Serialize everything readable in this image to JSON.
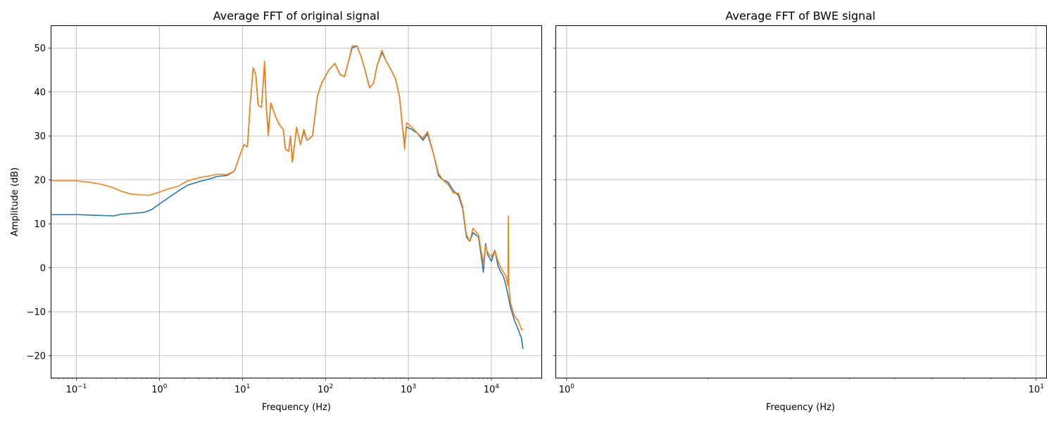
{
  "chart_data": [
    {
      "type": "line",
      "title": "Average FFT of original signal",
      "xlabel": "Frequency (Hz)",
      "ylabel": "Amplitude (dB)",
      "xscale": "log",
      "xlim": [
        0.05,
        40000
      ],
      "ylim": [
        -25,
        55
      ],
      "grid": true,
      "xticks": [
        {
          "value": 0.1,
          "base": "10",
          "exp": "−1"
        },
        {
          "value": 1,
          "base": "10",
          "exp": "0"
        },
        {
          "value": 10,
          "base": "10",
          "exp": "1"
        },
        {
          "value": 100,
          "base": "10",
          "exp": "2"
        },
        {
          "value": 1000,
          "base": "10",
          "exp": "3"
        },
        {
          "value": 10000,
          "base": "10",
          "exp": "4"
        }
      ],
      "yticks": [
        {
          "value": 50,
          "label": "50"
        },
        {
          "value": 40,
          "label": "40"
        },
        {
          "value": 30,
          "label": "30"
        },
        {
          "value": 20,
          "label": "20"
        },
        {
          "value": 10,
          "label": "10"
        },
        {
          "value": 0,
          "label": "0"
        },
        {
          "value": -10,
          "label": "−10"
        },
        {
          "value": -20,
          "label": "−20"
        }
      ],
      "series": [
        {
          "color": "#1f77b4",
          "points": [
            [
              0.05,
              12.1
            ],
            [
              0.1,
              12.1
            ],
            [
              0.2,
              11.9
            ],
            [
              0.28,
              11.8
            ],
            [
              0.35,
              12.2
            ],
            [
              0.5,
              12.4
            ],
            [
              0.65,
              12.6
            ],
            [
              0.8,
              13.2
            ],
            [
              1.0,
              14.5
            ],
            [
              1.3,
              16.0
            ],
            [
              1.7,
              17.5
            ],
            [
              2.2,
              18.8
            ],
            [
              3.0,
              19.6
            ],
            [
              4.0,
              20.2
            ],
            [
              5.0,
              20.8
            ],
            [
              6.5,
              21.0
            ],
            [
              8.0,
              22.0
            ],
            [
              9.5,
              26.0
            ],
            [
              10.5,
              28.0
            ],
            [
              11.5,
              27.5
            ],
            [
              12.5,
              38.0
            ],
            [
              13.5,
              45.5
            ],
            [
              14.5,
              44.0
            ],
            [
              15.5,
              37.0
            ],
            [
              17.0,
              36.5
            ],
            [
              18.5,
              46.5
            ],
            [
              19.5,
              36.0
            ],
            [
              20.5,
              31.0
            ],
            [
              22.0,
              37.5
            ],
            [
              25.0,
              34.5
            ],
            [
              28.0,
              32.5
            ],
            [
              31.0,
              31.5
            ],
            [
              33.0,
              27.0
            ],
            [
              36.0,
              26.5
            ],
            [
              38.0,
              30.0
            ],
            [
              40.0,
              24.0
            ],
            [
              45.0,
              32.0
            ],
            [
              50.0,
              28.0
            ],
            [
              55.0,
              31.0
            ],
            [
              60.0,
              29.0
            ],
            [
              70.0,
              30.0
            ],
            [
              80.0,
              39.0
            ],
            [
              90.0,
              42.0
            ],
            [
              110.0,
              45.0
            ],
            [
              130.0,
              46.5
            ],
            [
              150.0,
              44.0
            ],
            [
              170.0,
              43.5
            ],
            [
              190.0,
              47.0
            ],
            [
              210.0,
              50.0
            ],
            [
              240.0,
              50.5
            ],
            [
              270.0,
              48.0
            ],
            [
              300.0,
              45.0
            ],
            [
              340.0,
              41.0
            ],
            [
              380.0,
              42.0
            ],
            [
              420.0,
              46.0
            ],
            [
              480.0,
              49.0
            ],
            [
              540.0,
              47.0
            ],
            [
              600.0,
              45.5
            ],
            [
              700.0,
              43.0
            ],
            [
              780.0,
              39.0
            ],
            [
              850.0,
              32.0
            ],
            [
              900.0,
              28.0
            ],
            [
              950.0,
              32.0
            ],
            [
              1100.0,
              31.5
            ],
            [
              1300.0,
              30.5
            ],
            [
              1500.0,
              29.0
            ],
            [
              1700.0,
              30.5
            ],
            [
              2000.0,
              26.0
            ],
            [
              2300.0,
              21.0
            ],
            [
              2600.0,
              20.0
            ],
            [
              3000.0,
              19.5
            ],
            [
              3500.0,
              17.5
            ],
            [
              4000.0,
              16.5
            ],
            [
              4500.0,
              13.5
            ],
            [
              5000.0,
              7.0
            ],
            [
              5500.0,
              6.0
            ],
            [
              6000.0,
              8.0
            ],
            [
              7000.0,
              7.0
            ],
            [
              7500.0,
              3.0
            ],
            [
              8000.0,
              -1.0
            ],
            [
              8500.0,
              5.5
            ],
            [
              9000.0,
              3.0
            ],
            [
              10000.0,
              1.5
            ],
            [
              11000.0,
              4.0
            ],
            [
              12000.0,
              0.5
            ],
            [
              13000.0,
              -1.0
            ],
            [
              14000.0,
              -2.0
            ],
            [
              15000.0,
              -4.0
            ],
            [
              17000.0,
              -9.0
            ],
            [
              19000.0,
              -12.0
            ],
            [
              21000.0,
              -14.0
            ],
            [
              23000.0,
              -16.0
            ],
            [
              24000.0,
              -18.5
            ]
          ]
        },
        {
          "color": "#ff7f0e",
          "points": [
            [
              0.05,
              19.8
            ],
            [
              0.1,
              19.8
            ],
            [
              0.15,
              19.4
            ],
            [
              0.2,
              19.0
            ],
            [
              0.28,
              18.2
            ],
            [
              0.35,
              17.4
            ],
            [
              0.45,
              16.8
            ],
            [
              0.6,
              16.6
            ],
            [
              0.75,
              16.5
            ],
            [
              1.0,
              17.2
            ],
            [
              1.3,
              18.0
            ],
            [
              1.7,
              18.6
            ],
            [
              2.2,
              19.8
            ],
            [
              3.0,
              20.5
            ],
            [
              4.0,
              20.9
            ],
            [
              5.0,
              21.3
            ],
            [
              6.5,
              21.2
            ],
            [
              8.0,
              22.0
            ],
            [
              9.5,
              26.0
            ],
            [
              10.5,
              28.0
            ],
            [
              11.5,
              27.5
            ],
            [
              12.5,
              38.0
            ],
            [
              13.5,
              45.5
            ],
            [
              14.5,
              44.0
            ],
            [
              15.5,
              37.0
            ],
            [
              17.0,
              36.5
            ],
            [
              18.5,
              47.0
            ],
            [
              19.5,
              36.0
            ],
            [
              20.5,
              30.0
            ],
            [
              22.0,
              37.5
            ],
            [
              25.0,
              34.5
            ],
            [
              28.0,
              32.5
            ],
            [
              31.0,
              31.5
            ],
            [
              33.0,
              27.0
            ],
            [
              36.0,
              26.5
            ],
            [
              38.0,
              30.0
            ],
            [
              40.0,
              24.0
            ],
            [
              45.0,
              32.0
            ],
            [
              50.0,
              28.0
            ],
            [
              55.0,
              31.5
            ],
            [
              60.0,
              29.0
            ],
            [
              70.0,
              30.0
            ],
            [
              80.0,
              39.0
            ],
            [
              90.0,
              42.0
            ],
            [
              110.0,
              45.0
            ],
            [
              130.0,
              46.5
            ],
            [
              150.0,
              44.0
            ],
            [
              170.0,
              43.5
            ],
            [
              190.0,
              47.0
            ],
            [
              210.0,
              50.5
            ],
            [
              240.0,
              50.5
            ],
            [
              270.0,
              48.0
            ],
            [
              300.0,
              45.0
            ],
            [
              340.0,
              41.0
            ],
            [
              380.0,
              42.0
            ],
            [
              420.0,
              46.0
            ],
            [
              480.0,
              49.5
            ],
            [
              540.0,
              47.0
            ],
            [
              600.0,
              45.5
            ],
            [
              700.0,
              43.0
            ],
            [
              780.0,
              39.0
            ],
            [
              850.0,
              32.0
            ],
            [
              900.0,
              27.0
            ],
            [
              950.0,
              33.0
            ],
            [
              1100.0,
              32.0
            ],
            [
              1300.0,
              30.5
            ],
            [
              1500.0,
              29.5
            ],
            [
              1700.0,
              31.0
            ],
            [
              2000.0,
              26.0
            ],
            [
              2300.0,
              21.5
            ],
            [
              2600.0,
              20.0
            ],
            [
              3000.0,
              19.0
            ],
            [
              3500.0,
              17.0
            ],
            [
              4000.0,
              17.0
            ],
            [
              4500.0,
              14.0
            ],
            [
              5000.0,
              7.5
            ],
            [
              5500.0,
              6.0
            ],
            [
              6000.0,
              9.0
            ],
            [
              7000.0,
              7.5
            ],
            [
              7500.0,
              4.0
            ],
            [
              8000.0,
              1.0
            ],
            [
              8500.0,
              5.0
            ],
            [
              9000.0,
              3.5
            ],
            [
              10000.0,
              2.5
            ],
            [
              11000.0,
              4.0
            ],
            [
              12000.0,
              1.5
            ],
            [
              13000.0,
              0.0
            ],
            [
              14000.0,
              -1.0
            ],
            [
              15000.0,
              -2.0
            ],
            [
              15800.0,
              -4.0
            ],
            [
              16000.0,
              11.8
            ],
            [
              16200.0,
              -4.0
            ],
            [
              17000.0,
              -8.0
            ],
            [
              19000.0,
              -11.0
            ],
            [
              21000.0,
              -12.0
            ],
            [
              23000.0,
              -14.0
            ],
            [
              24000.0,
              -14.0
            ]
          ]
        }
      ]
    },
    {
      "type": "line",
      "title": "Average FFT of BWE signal",
      "xlabel": "Frequency (Hz)",
      "ylabel": "",
      "xscale": "log",
      "xlim": [
        0.95,
        10.5
      ],
      "ylim": [
        -25,
        55
      ],
      "sharey": true,
      "grid": true,
      "xticks": [
        {
          "value": 1,
          "base": "10",
          "exp": "0"
        },
        {
          "value": 10,
          "base": "10",
          "exp": "1"
        }
      ],
      "series": []
    }
  ]
}
